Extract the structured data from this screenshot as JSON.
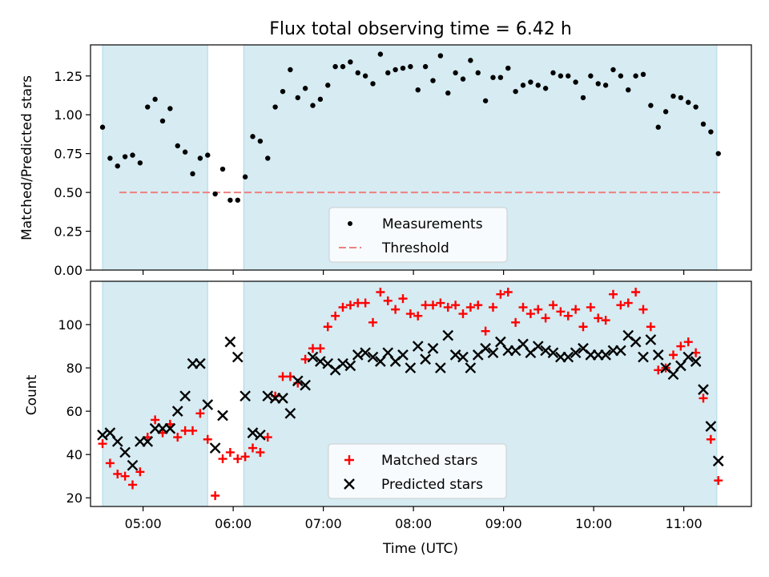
{
  "figure": {
    "title": "Flux total observing time = 6.42 h"
  },
  "colors": {
    "shade": "#add8e6",
    "threshold": "#f08080",
    "matched": "#ff0000",
    "predicted": "#000000",
    "measurement": "#000000"
  },
  "chart_data": [
    {
      "type": "scatter",
      "ylabel": "Matched/Predicted stars",
      "xlim": [
        "04:25",
        "11:45"
      ],
      "ylim": [
        0,
        1.45
      ],
      "yticks": [
        "0.00",
        "0.25",
        "0.50",
        "0.75",
        "1.00",
        "1.25"
      ],
      "shaded_regions": [
        [
          "04:33",
          "05:43"
        ],
        [
          "06:07",
          "11:22"
        ]
      ],
      "threshold": 0.5,
      "legend": {
        "placement": "bottom-center",
        "entries": [
          "Measurements",
          "Threshold"
        ]
      },
      "series": [
        {
          "name": "Measurements",
          "marker": "dot",
          "points": [
            [
              "04:33",
              0.92
            ],
            [
              "04:38",
              0.72
            ],
            [
              "04:43",
              0.67
            ],
            [
              "04:48",
              0.73
            ],
            [
              "04:53",
              0.74
            ],
            [
              "04:58",
              0.69
            ],
            [
              "05:03",
              1.05
            ],
            [
              "05:08",
              1.1
            ],
            [
              "05:13",
              0.96
            ],
            [
              "05:18",
              1.04
            ],
            [
              "05:23",
              0.8
            ],
            [
              "05:28",
              0.76
            ],
            [
              "05:33",
              0.62
            ],
            [
              "05:38",
              0.72
            ],
            [
              "05:43",
              0.74
            ],
            [
              "05:48",
              0.49
            ],
            [
              "05:53",
              0.65
            ],
            [
              "05:58",
              0.45
            ],
            [
              "06:03",
              0.45
            ],
            [
              "06:08",
              0.6
            ],
            [
              "06:13",
              0.86
            ],
            [
              "06:18",
              0.83
            ],
            [
              "06:23",
              0.72
            ],
            [
              "06:28",
              1.05
            ],
            [
              "06:33",
              1.15
            ],
            [
              "06:38",
              1.29
            ],
            [
              "06:43",
              1.11
            ],
            [
              "06:48",
              1.17
            ],
            [
              "06:53",
              1.06
            ],
            [
              "06:58",
              1.1
            ],
            [
              "07:03",
              1.19
            ],
            [
              "07:08",
              1.31
            ],
            [
              "07:13",
              1.31
            ],
            [
              "07:18",
              1.34
            ],
            [
              "07:23",
              1.27
            ],
            [
              "07:28",
              1.25
            ],
            [
              "07:33",
              1.2
            ],
            [
              "07:38",
              1.39
            ],
            [
              "07:43",
              1.27
            ],
            [
              "07:48",
              1.29
            ],
            [
              "07:53",
              1.3
            ],
            [
              "07:58",
              1.31
            ],
            [
              "08:03",
              1.16
            ],
            [
              "08:08",
              1.31
            ],
            [
              "08:13",
              1.22
            ],
            [
              "08:18",
              1.38
            ],
            [
              "08:23",
              1.14
            ],
            [
              "08:28",
              1.27
            ],
            [
              "08:33",
              1.23
            ],
            [
              "08:38",
              1.35
            ],
            [
              "08:43",
              1.27
            ],
            [
              "08:48",
              1.09
            ],
            [
              "08:53",
              1.24
            ],
            [
              "08:58",
              1.24
            ],
            [
              "09:03",
              1.3
            ],
            [
              "09:08",
              1.15
            ],
            [
              "09:13",
              1.19
            ],
            [
              "09:18",
              1.21
            ],
            [
              "09:23",
              1.19
            ],
            [
              "09:28",
              1.17
            ],
            [
              "09:33",
              1.27
            ],
            [
              "09:38",
              1.25
            ],
            [
              "09:43",
              1.25
            ],
            [
              "09:48",
              1.21
            ],
            [
              "09:53",
              1.11
            ],
            [
              "09:58",
              1.25
            ],
            [
              "10:03",
              1.2
            ],
            [
              "10:08",
              1.19
            ],
            [
              "10:13",
              1.29
            ],
            [
              "10:18",
              1.25
            ],
            [
              "10:23",
              1.16
            ],
            [
              "10:28",
              1.25
            ],
            [
              "10:33",
              1.26
            ],
            [
              "10:38",
              1.06
            ],
            [
              "10:43",
              0.92
            ],
            [
              "10:48",
              1.02
            ],
            [
              "10:53",
              1.12
            ],
            [
              "10:58",
              1.11
            ],
            [
              "11:03",
              1.08
            ],
            [
              "11:08",
              1.05
            ],
            [
              "11:13",
              0.94
            ],
            [
              "11:18",
              0.89
            ],
            [
              "11:23",
              0.75
            ]
          ]
        }
      ]
    },
    {
      "type": "scatter",
      "xlabel": "Time (UTC)",
      "ylabel": "Count",
      "xlim": [
        "04:25",
        "11:45"
      ],
      "ylim": [
        16,
        120
      ],
      "yticks": [
        "20",
        "40",
        "60",
        "80",
        "100"
      ],
      "xticks": [
        "05:00",
        "06:00",
        "07:00",
        "08:00",
        "09:00",
        "10:00",
        "11:00"
      ],
      "shaded_regions": [
        [
          "04:33",
          "05:43"
        ],
        [
          "06:07",
          "11:22"
        ]
      ],
      "legend": {
        "placement": "bottom-center",
        "entries": [
          "Matched stars",
          "Predicted stars"
        ]
      },
      "series": [
        {
          "name": "Matched stars",
          "marker": "plus",
          "points": [
            [
              "04:33",
              45
            ],
            [
              "04:38",
              36
            ],
            [
              "04:43",
              31
            ],
            [
              "04:48",
              30
            ],
            [
              "04:53",
              26
            ],
            [
              "04:58",
              32
            ],
            [
              "05:03",
              48
            ],
            [
              "05:08",
              56
            ],
            [
              "05:13",
              50
            ],
            [
              "05:18",
              54
            ],
            [
              "05:23",
              48
            ],
            [
              "05:28",
              51
            ],
            [
              "05:33",
              51
            ],
            [
              "05:38",
              59
            ],
            [
              "05:43",
              47
            ],
            [
              "05:48",
              21
            ],
            [
              "05:53",
              38
            ],
            [
              "05:58",
              41
            ],
            [
              "06:03",
              38
            ],
            [
              "06:08",
              39
            ],
            [
              "06:13",
              43
            ],
            [
              "06:18",
              41
            ],
            [
              "06:23",
              48
            ],
            [
              "06:28",
              67
            ],
            [
              "06:33",
              76
            ],
            [
              "06:38",
              76
            ],
            [
              "06:43",
              73
            ],
            [
              "06:48",
              84
            ],
            [
              "06:53",
              89
            ],
            [
              "06:58",
              89
            ],
            [
              "07:03",
              99
            ],
            [
              "07:08",
              104
            ],
            [
              "07:13",
              108
            ],
            [
              "07:18",
              109
            ],
            [
              "07:23",
              110
            ],
            [
              "07:28",
              110
            ],
            [
              "07:33",
              101
            ],
            [
              "07:38",
              115
            ],
            [
              "07:43",
              111
            ],
            [
              "07:48",
              107
            ],
            [
              "07:53",
              112
            ],
            [
              "07:58",
              105
            ],
            [
              "08:03",
              104
            ],
            [
              "08:08",
              109
            ],
            [
              "08:13",
              109
            ],
            [
              "08:18",
              110
            ],
            [
              "08:23",
              108
            ],
            [
              "08:28",
              109
            ],
            [
              "08:33",
              105
            ],
            [
              "08:38",
              108
            ],
            [
              "08:43",
              109
            ],
            [
              "08:48",
              97
            ],
            [
              "08:53",
              108
            ],
            [
              "08:58",
              114
            ],
            [
              "09:03",
              115
            ],
            [
              "09:08",
              101
            ],
            [
              "09:13",
              108
            ],
            [
              "09:18",
              105
            ],
            [
              "09:23",
              107
            ],
            [
              "09:28",
              103
            ],
            [
              "09:33",
              109
            ],
            [
              "09:38",
              106
            ],
            [
              "09:43",
              104
            ],
            [
              "09:48",
              107
            ],
            [
              "09:53",
              99
            ],
            [
              "09:58",
              108
            ],
            [
              "10:03",
              103
            ],
            [
              "10:08",
              102
            ],
            [
              "10:13",
              114
            ],
            [
              "10:18",
              109
            ],
            [
              "10:23",
              110
            ],
            [
              "10:28",
              115
            ],
            [
              "10:33",
              107
            ],
            [
              "10:38",
              99
            ],
            [
              "10:43",
              79
            ],
            [
              "10:48",
              80
            ],
            [
              "10:53",
              86
            ],
            [
              "10:58",
              90
            ],
            [
              "11:03",
              92
            ],
            [
              "11:08",
              87
            ],
            [
              "11:13",
              66
            ],
            [
              "11:18",
              47
            ],
            [
              "11:23",
              28
            ]
          ]
        },
        {
          "name": "Predicted stars",
          "marker": "x",
          "points": [
            [
              "04:33",
              49
            ],
            [
              "04:38",
              50
            ],
            [
              "04:43",
              46
            ],
            [
              "04:48",
              41
            ],
            [
              "04:53",
              35
            ],
            [
              "04:58",
              46
            ],
            [
              "05:03",
              46
            ],
            [
              "05:08",
              52
            ],
            [
              "05:13",
              52
            ],
            [
              "05:18",
              52
            ],
            [
              "05:23",
              60
            ],
            [
              "05:28",
              67
            ],
            [
              "05:33",
              82
            ],
            [
              "05:38",
              82
            ],
            [
              "05:43",
              63
            ],
            [
              "05:48",
              43
            ],
            [
              "05:53",
              58
            ],
            [
              "05:58",
              92
            ],
            [
              "06:03",
              85
            ],
            [
              "06:08",
              67
            ],
            [
              "06:13",
              50
            ],
            [
              "06:18",
              49
            ],
            [
              "06:23",
              67
            ],
            [
              "06:28",
              66
            ],
            [
              "06:33",
              66
            ],
            [
              "06:38",
              59
            ],
            [
              "06:43",
              74
            ],
            [
              "06:48",
              72
            ],
            [
              "06:53",
              85
            ],
            [
              "06:58",
              83
            ],
            [
              "07:03",
              82
            ],
            [
              "07:08",
              79
            ],
            [
              "07:13",
              82
            ],
            [
              "07:18",
              81
            ],
            [
              "07:23",
              86
            ],
            [
              "07:28",
              87
            ],
            [
              "07:33",
              85
            ],
            [
              "07:38",
              83
            ],
            [
              "07:43",
              87
            ],
            [
              "07:48",
              83
            ],
            [
              "07:53",
              86
            ],
            [
              "07:58",
              80
            ],
            [
              "08:03",
              90
            ],
            [
              "08:08",
              84
            ],
            [
              "08:13",
              89
            ],
            [
              "08:18",
              80
            ],
            [
              "08:23",
              95
            ],
            [
              "08:28",
              86
            ],
            [
              "08:33",
              85
            ],
            [
              "08:38",
              80
            ],
            [
              "08:43",
              86
            ],
            [
              "08:48",
              89
            ],
            [
              "08:53",
              87
            ],
            [
              "08:58",
              92
            ],
            [
              "09:03",
              88
            ],
            [
              "09:08",
              88
            ],
            [
              "09:13",
              91
            ],
            [
              "09:18",
              87
            ],
            [
              "09:23",
              90
            ],
            [
              "09:28",
              88
            ],
            [
              "09:33",
              87
            ],
            [
              "09:38",
              85
            ],
            [
              "09:43",
              85
            ],
            [
              "09:48",
              87
            ],
            [
              "09:53",
              89
            ],
            [
              "09:58",
              86
            ],
            [
              "10:03",
              86
            ],
            [
              "10:08",
              86
            ],
            [
              "10:13",
              88
            ],
            [
              "10:18",
              88
            ],
            [
              "10:23",
              95
            ],
            [
              "10:28",
              92
            ],
            [
              "10:33",
              85
            ],
            [
              "10:38",
              93
            ],
            [
              "10:43",
              86
            ],
            [
              "10:48",
              80
            ],
            [
              "10:53",
              77
            ],
            [
              "10:58",
              81
            ],
            [
              "11:03",
              85
            ],
            [
              "11:08",
              83
            ],
            [
              "11:13",
              70
            ],
            [
              "11:18",
              53
            ],
            [
              "11:23",
              37
            ]
          ]
        }
      ]
    }
  ]
}
